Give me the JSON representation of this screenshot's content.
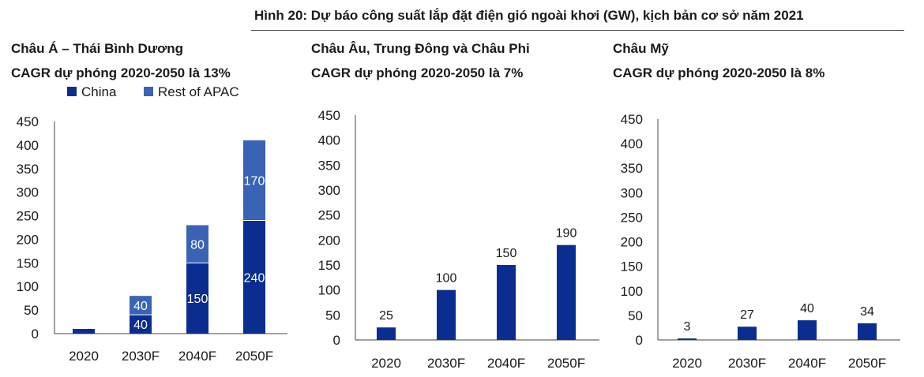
{
  "figure_title": "Hình 20: Dự báo công suất lắp đặt điện gió ngoài khơi (GW), kịch bản cơ sở năm 2021",
  "colors": {
    "china": "#0a2d8f",
    "rest": "#3b63b5",
    "axis": "#444444",
    "text": "#1a1a1a"
  },
  "chart_data": [
    {
      "type": "bar",
      "stacked": true,
      "title": "Châu Á – Thái Bình Dương",
      "subtitle": "CAGR dự phóng 2020-2050 là 13%",
      "categories": [
        "2020",
        "2030F",
        "2040F",
        "2050F"
      ],
      "ylim": [
        0,
        450
      ],
      "yticks": [
        "0",
        "50",
        "100",
        "150",
        "200",
        "250",
        "300",
        "350",
        "400",
        "450"
      ],
      "legend": "top",
      "series": [
        {
          "name": "China",
          "values": [
            10,
            40,
            150,
            240
          ],
          "labels": [
            "",
            "40",
            "150",
            "240"
          ]
        },
        {
          "name": "Rest of APAC",
          "values": [
            0,
            40,
            80,
            170
          ],
          "labels": [
            "",
            "40",
            "80",
            "170"
          ]
        }
      ]
    },
    {
      "type": "bar",
      "title": "Châu Âu, Trung Đông và Châu Phi",
      "subtitle": "CAGR dự phóng 2020-2050 là 7%",
      "categories": [
        "2020",
        "2030F",
        "2040F",
        "2050F"
      ],
      "ylim": [
        0,
        450
      ],
      "yticks": [
        "0",
        "50",
        "100",
        "150",
        "200",
        "250",
        "300",
        "350",
        "400",
        "450"
      ],
      "values": [
        25,
        100,
        150,
        190
      ],
      "labels": [
        "25",
        "100",
        "150",
        "190"
      ]
    },
    {
      "type": "bar",
      "title": "Châu Mỹ",
      "subtitle": "CAGR dự phóng 2020-2050 là 8%",
      "categories": [
        "2020",
        "2030F",
        "2040F",
        "2050F"
      ],
      "ylim": [
        0,
        450
      ],
      "yticks": [
        "0",
        "50",
        "100",
        "150",
        "200",
        "250",
        "300",
        "350",
        "400",
        "450"
      ],
      "values": [
        3,
        27,
        40,
        34
      ],
      "labels": [
        "3",
        "27",
        "40",
        "34"
      ]
    }
  ]
}
